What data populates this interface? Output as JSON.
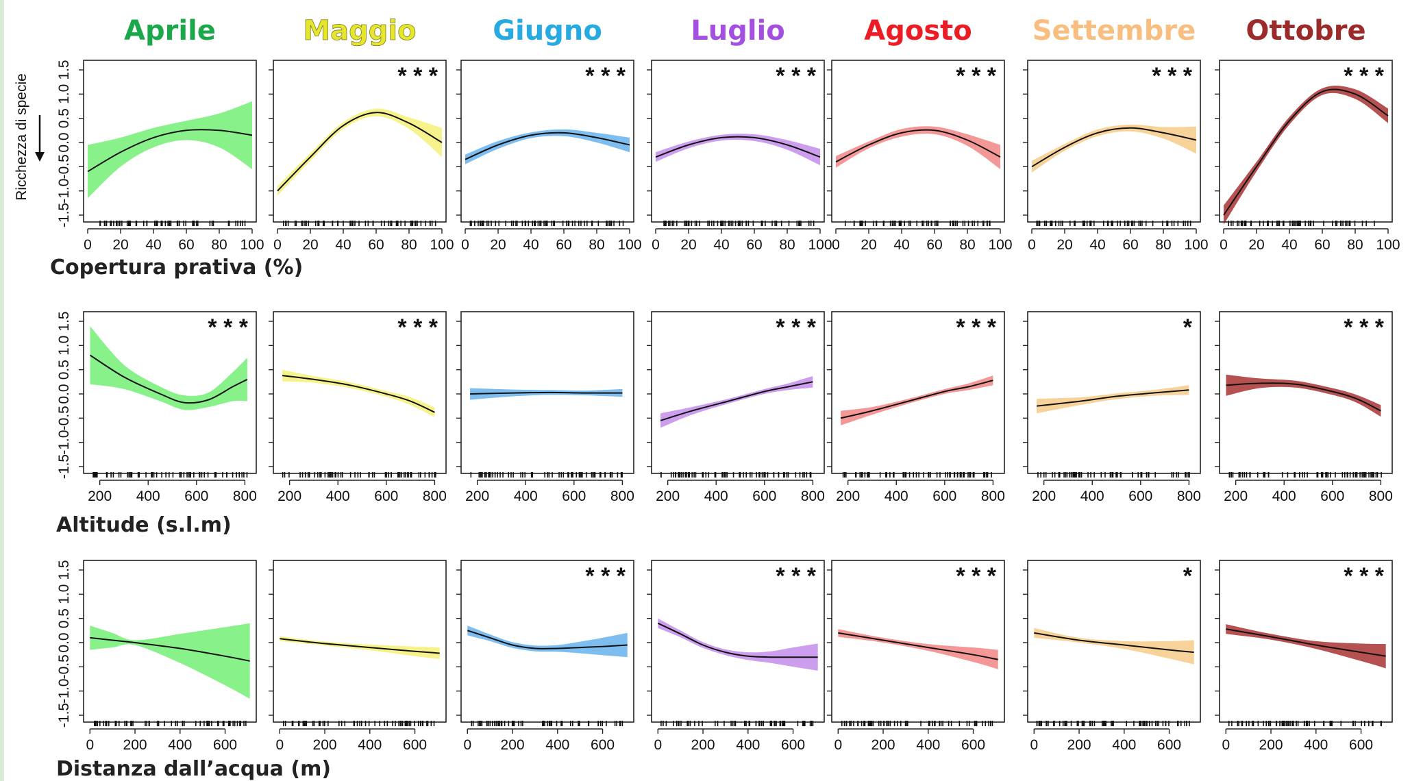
{
  "header": {
    "months": [
      {
        "label": "Aprile",
        "color": "#1aa84a"
      },
      {
        "label": "Maggio",
        "color": "#e6e62e"
      },
      {
        "label": "Giugno",
        "color": "#27a9e1"
      },
      {
        "label": "Luglio",
        "color": "#a34fe0"
      },
      {
        "label": "Agosto",
        "color": "#ec1c24"
      },
      {
        "label": "Settembre",
        "color": "#f7be7f"
      },
      {
        "label": "Ottobre",
        "color": "#9b2a2a"
      }
    ]
  },
  "fill_colors": [
    "#7cf07c",
    "#f6f27f",
    "#6fb6ee",
    "#c693eb",
    "#f28c8c",
    "#f6cd8e",
    "#a83232"
  ],
  "y_axis": {
    "label": "Ricchezza di specie",
    "ticks": [
      "-1.5",
      "-1.0",
      "-0.5",
      "0.0",
      "0.5",
      "1.0",
      "1.5"
    ]
  },
  "chart_data": [
    {
      "type": "line",
      "xlabel": "Copertura prativa (%)",
      "xlim": [
        0,
        100
      ],
      "ylim": [
        -1.5,
        1.5
      ],
      "xticks": [
        0,
        20,
        40,
        60,
        80,
        100
      ],
      "xtick_labels": [
        "0",
        "20",
        "40",
        "60",
        "80",
        "100"
      ],
      "series": [
        {
          "name": "Aprile",
          "significance": "",
          "x": [
            0,
            20,
            40,
            60,
            80,
            100
          ],
          "y": [
            -0.6,
            -0.2,
            0.1,
            0.25,
            0.25,
            0.15
          ],
          "band": [
            0.55,
            0.3,
            0.2,
            0.2,
            0.35,
            0.7
          ]
        },
        {
          "name": "Maggio",
          "significance": "***",
          "x": [
            0,
            20,
            40,
            60,
            80,
            100
          ],
          "y": [
            -1.0,
            -0.3,
            0.35,
            0.62,
            0.4,
            0.0
          ],
          "band": [
            0.1,
            0.08,
            0.07,
            0.08,
            0.12,
            0.3
          ]
        },
        {
          "name": "Giugno",
          "significance": "***",
          "x": [
            0,
            20,
            40,
            60,
            80,
            100
          ],
          "y": [
            -0.35,
            -0.05,
            0.15,
            0.2,
            0.1,
            -0.05
          ],
          "band": [
            0.1,
            0.08,
            0.06,
            0.07,
            0.1,
            0.15
          ]
        },
        {
          "name": "Luglio",
          "significance": "***",
          "x": [
            0,
            20,
            40,
            60,
            80,
            100
          ],
          "y": [
            -0.3,
            -0.05,
            0.1,
            0.1,
            -0.05,
            -0.3
          ],
          "band": [
            0.1,
            0.07,
            0.06,
            0.07,
            0.1,
            0.17
          ]
        },
        {
          "name": "Agosto",
          "significance": "***",
          "x": [
            0,
            20,
            40,
            60,
            80,
            100
          ],
          "y": [
            -0.4,
            -0.05,
            0.2,
            0.25,
            0.05,
            -0.3
          ],
          "band": [
            0.12,
            0.07,
            0.08,
            0.08,
            0.12,
            0.25
          ]
        },
        {
          "name": "Settembre",
          "significance": "***",
          "x": [
            0,
            20,
            40,
            60,
            80,
            100
          ],
          "y": [
            -0.5,
            -0.1,
            0.2,
            0.3,
            0.2,
            0.05
          ],
          "band": [
            0.12,
            0.07,
            0.07,
            0.07,
            0.12,
            0.28
          ]
        },
        {
          "name": "Ottobre",
          "significance": "***",
          "x": [
            0,
            20,
            40,
            60,
            80,
            100
          ],
          "y": [
            -1.5,
            -0.5,
            0.45,
            1.05,
            1.0,
            0.55
          ],
          "band": [
            0.2,
            0.1,
            0.08,
            0.07,
            0.1,
            0.15
          ]
        }
      ]
    },
    {
      "type": "line",
      "xlabel": "Altitude (s.l.m)",
      "xlim": [
        150,
        830
      ],
      "ylim": [
        -1.5,
        1.5
      ],
      "xticks": [
        200,
        400,
        600,
        800
      ],
      "xtick_labels": [
        "200",
        "400",
        "600",
        "800"
      ],
      "series": [
        {
          "name": "Aprile",
          "significance": "***",
          "x": [
            160,
            300,
            450,
            550,
            650,
            750,
            810
          ],
          "y": [
            0.8,
            0.35,
            0.0,
            -0.18,
            -0.12,
            0.15,
            0.3
          ],
          "band": [
            0.6,
            0.25,
            0.15,
            0.15,
            0.15,
            0.3,
            0.45
          ]
        },
        {
          "name": "Maggio",
          "significance": "***",
          "x": [
            170,
            300,
            450,
            600,
            700,
            800
          ],
          "y": [
            0.38,
            0.3,
            0.18,
            0.0,
            -0.15,
            -0.38
          ],
          "band": [
            0.12,
            0.07,
            0.06,
            0.06,
            0.08,
            0.1
          ]
        },
        {
          "name": "Giugno",
          "significance": "",
          "x": [
            170,
            350,
            500,
            650,
            800
          ],
          "y": [
            0.0,
            0.02,
            0.03,
            0.02,
            0.02
          ],
          "band": [
            0.12,
            0.07,
            0.05,
            0.05,
            0.08
          ]
        },
        {
          "name": "Luglio",
          "significance": "***",
          "x": [
            170,
            300,
            450,
            600,
            700,
            800
          ],
          "y": [
            -0.55,
            -0.35,
            -0.15,
            0.05,
            0.15,
            0.25
          ],
          "band": [
            0.15,
            0.08,
            0.05,
            0.05,
            0.07,
            0.12
          ]
        },
        {
          "name": "Agosto",
          "significance": "***",
          "x": [
            170,
            300,
            450,
            600,
            700,
            800
          ],
          "y": [
            -0.5,
            -0.35,
            -0.15,
            0.05,
            0.15,
            0.28
          ],
          "band": [
            0.15,
            0.08,
            0.05,
            0.05,
            0.07,
            0.1
          ]
        },
        {
          "name": "Settembre",
          "significance": "*",
          "x": [
            170,
            350,
            500,
            650,
            800
          ],
          "y": [
            -0.25,
            -0.15,
            -0.05,
            0.02,
            0.08
          ],
          "band": [
            0.15,
            0.08,
            0.06,
            0.06,
            0.1
          ]
        },
        {
          "name": "Ottobre",
          "significance": "***",
          "x": [
            160,
            300,
            450,
            600,
            700,
            800
          ],
          "y": [
            0.18,
            0.22,
            0.2,
            0.05,
            -0.1,
            -0.35
          ],
          "band": [
            0.22,
            0.1,
            0.07,
            0.07,
            0.08,
            0.12
          ]
        }
      ]
    },
    {
      "type": "line",
      "xlabel": "Distanza dall’acqua (m)",
      "xlim": [
        -10,
        720
      ],
      "ylim": [
        -1.5,
        1.5
      ],
      "xticks": [
        0,
        200,
        400,
        600
      ],
      "xtick_labels": [
        "0",
        "200",
        "400",
        "600"
      ],
      "series": [
        {
          "name": "Aprile",
          "significance": "",
          "x": [
            0,
            100,
            200,
            400,
            600,
            710
          ],
          "y": [
            0.1,
            0.05,
            0.0,
            -0.12,
            -0.28,
            -0.38
          ],
          "band": [
            0.25,
            0.15,
            0.05,
            0.3,
            0.6,
            0.78
          ]
        },
        {
          "name": "Maggio",
          "significance": "",
          "x": [
            0,
            200,
            400,
            600,
            710
          ],
          "y": [
            0.08,
            -0.02,
            -0.1,
            -0.18,
            -0.22
          ],
          "band": [
            0.05,
            0.04,
            0.06,
            0.1,
            0.12
          ]
        },
        {
          "name": "Giugno",
          "significance": "***",
          "x": [
            0,
            100,
            200,
            300,
            400,
            500,
            600,
            710
          ],
          "y": [
            0.25,
            0.1,
            -0.05,
            -0.12,
            -0.12,
            -0.1,
            -0.08,
            -0.05
          ],
          "band": [
            0.1,
            0.07,
            0.06,
            0.06,
            0.07,
            0.12,
            0.18,
            0.25
          ]
        },
        {
          "name": "Luglio",
          "significance": "***",
          "x": [
            0,
            100,
            200,
            300,
            400,
            500,
            600,
            710
          ],
          "y": [
            0.4,
            0.18,
            -0.05,
            -0.2,
            -0.28,
            -0.3,
            -0.3,
            -0.3
          ],
          "band": [
            0.1,
            0.07,
            0.06,
            0.06,
            0.08,
            0.12,
            0.2,
            0.28
          ]
        },
        {
          "name": "Agosto",
          "significance": "***",
          "x": [
            0,
            200,
            400,
            600,
            710
          ],
          "y": [
            0.2,
            0.05,
            -0.1,
            -0.25,
            -0.35
          ],
          "band": [
            0.08,
            0.05,
            0.07,
            0.15,
            0.2
          ]
        },
        {
          "name": "Settembre",
          "significance": "*",
          "x": [
            0,
            200,
            400,
            600,
            710
          ],
          "y": [
            0.2,
            0.05,
            -0.05,
            -0.15,
            -0.2
          ],
          "band": [
            0.1,
            0.05,
            0.08,
            0.18,
            0.25
          ]
        },
        {
          "name": "Ottobre",
          "significance": "***",
          "x": [
            0,
            200,
            400,
            600,
            710
          ],
          "y": [
            0.28,
            0.12,
            -0.05,
            -0.2,
            -0.28
          ],
          "band": [
            0.1,
            0.06,
            0.08,
            0.18,
            0.25
          ]
        }
      ]
    }
  ]
}
